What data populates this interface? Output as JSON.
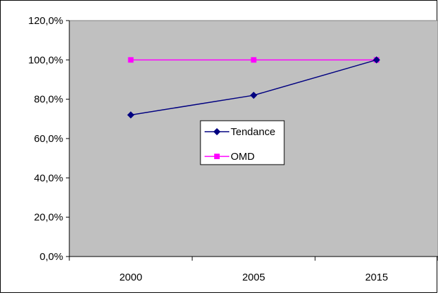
{
  "chart_data": {
    "type": "line",
    "title": "",
    "xlabel": "",
    "ylabel": "",
    "categories": [
      "2000",
      "2005",
      "2015"
    ],
    "ylim": [
      0,
      120
    ],
    "yticks": [
      "0,0%",
      "20,0%",
      "40,0%",
      "60,0%",
      "80,0%",
      "100,0%",
      "120,0%"
    ],
    "grid": false,
    "plot_background": "#C0C0C0",
    "legend_placement": "center",
    "series": [
      {
        "name": "Tendance",
        "values": [
          72,
          82,
          100
        ],
        "color": "#000080",
        "marker": "diamond"
      },
      {
        "name": "OMD",
        "values": [
          100,
          100,
          100
        ],
        "color": "#FF00FF",
        "marker": "square"
      }
    ]
  }
}
